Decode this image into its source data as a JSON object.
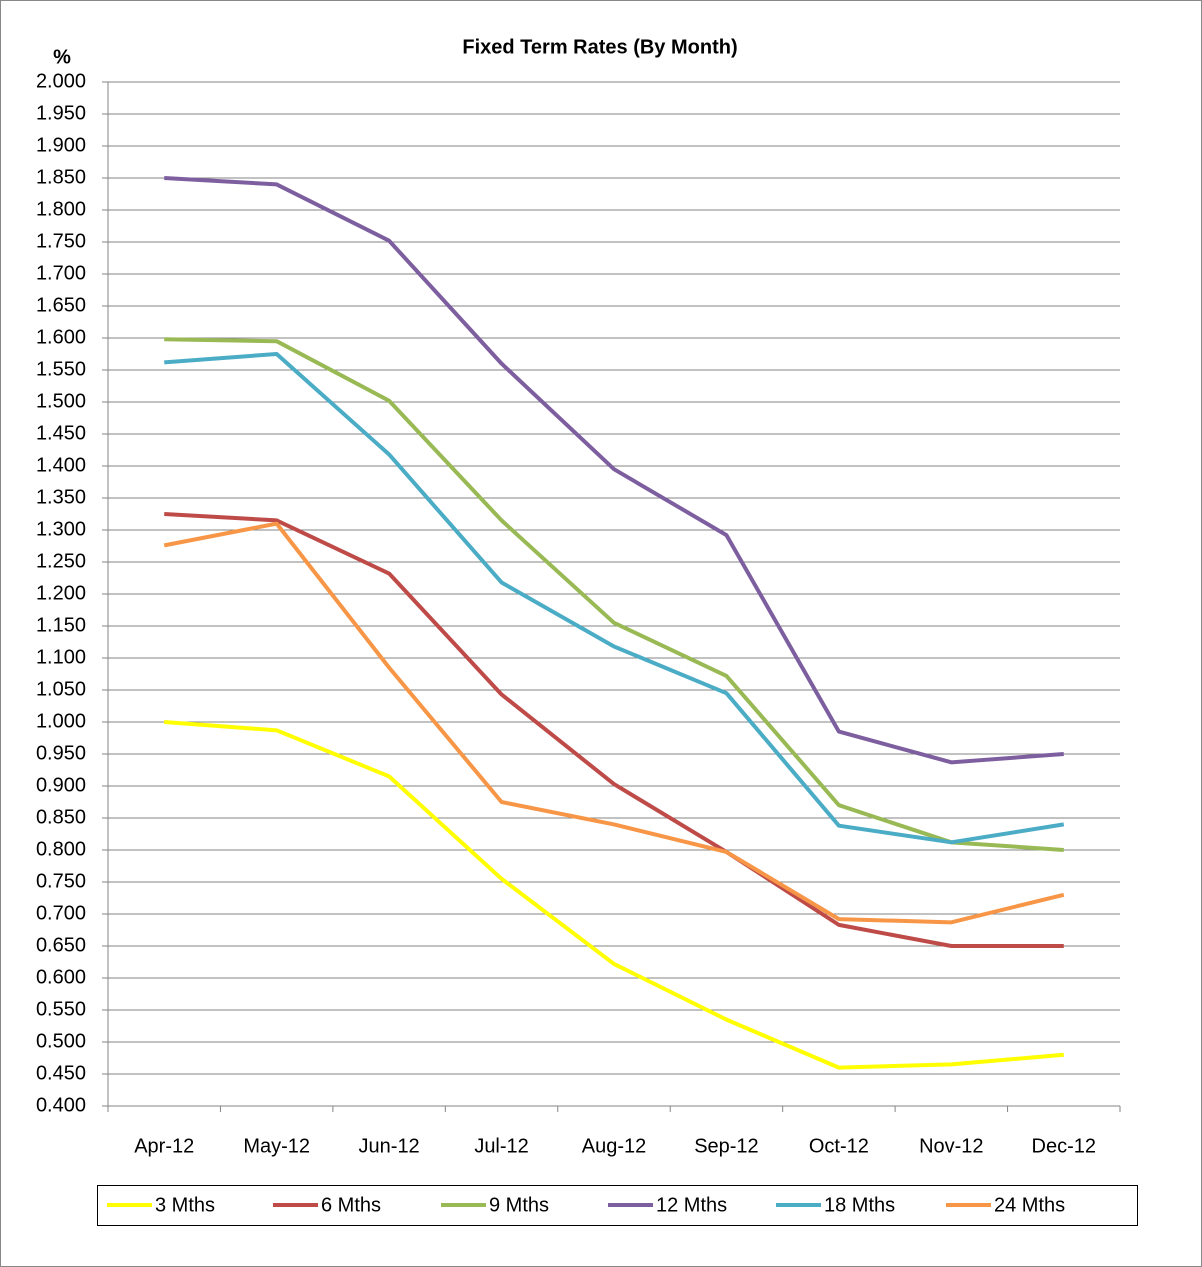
{
  "chart_data": {
    "type": "line",
    "title": "Fixed Term Rates (By Month)",
    "y_label": "%",
    "categories": [
      "Apr-12",
      "May-12",
      "Jun-12",
      "Jul-12",
      "Aug-12",
      "Sep-12",
      "Oct-12",
      "Nov-12",
      "Dec-12"
    ],
    "series": [
      {
        "name": "3 Mths",
        "color": "#ffff00",
        "values": [
          1.0,
          0.987,
          0.915,
          0.755,
          0.622,
          0.535,
          0.46,
          0.465,
          0.48
        ]
      },
      {
        "name": "6 Mths",
        "color": "#be4b48",
        "values": [
          1.325,
          1.315,
          1.232,
          1.043,
          0.903,
          0.797,
          0.683,
          0.65,
          0.65
        ]
      },
      {
        "name": "9 Mths",
        "color": "#98b954",
        "values": [
          1.598,
          1.595,
          1.502,
          1.315,
          1.155,
          1.072,
          0.87,
          0.812,
          0.8
        ]
      },
      {
        "name": "12 Mths",
        "color": "#7d5fa0",
        "values": [
          1.85,
          1.84,
          1.752,
          1.56,
          1.395,
          1.292,
          0.985,
          0.937,
          0.95
        ]
      },
      {
        "name": "18 Mths",
        "color": "#4bacc6",
        "values": [
          1.562,
          1.575,
          1.418,
          1.218,
          1.118,
          1.045,
          0.838,
          0.812,
          0.84
        ]
      },
      {
        "name": "24 Mths",
        "color": "#f79646",
        "values": [
          1.276,
          1.31,
          1.085,
          0.875,
          0.84,
          0.797,
          0.692,
          0.687,
          0.73
        ]
      }
    ],
    "ylim": [
      0.4,
      2.0
    ],
    "yticks": [
      {
        "value": 0.4,
        "label": "0.400"
      },
      {
        "value": 0.45,
        "label": "0.450"
      },
      {
        "value": 0.5,
        "label": "0.500"
      },
      {
        "value": 0.55,
        "label": "0.550"
      },
      {
        "value": 0.6,
        "label": "0.600"
      },
      {
        "value": 0.65,
        "label": "0.650"
      },
      {
        "value": 0.7,
        "label": "0.700"
      },
      {
        "value": 0.75,
        "label": "0.750"
      },
      {
        "value": 0.8,
        "label": "0.800"
      },
      {
        "value": 0.85,
        "label": "0.850"
      },
      {
        "value": 0.9,
        "label": "0.900"
      },
      {
        "value": 0.95,
        "label": "0.950"
      },
      {
        "value": 1.0,
        "label": "1.000"
      },
      {
        "value": 1.05,
        "label": "1.050"
      },
      {
        "value": 1.1,
        "label": "1.100"
      },
      {
        "value": 1.15,
        "label": "1.150"
      },
      {
        "value": 1.2,
        "label": "1.200"
      },
      {
        "value": 1.25,
        "label": "1.250"
      },
      {
        "value": 1.3,
        "label": "1.300"
      },
      {
        "value": 1.35,
        "label": "1.350"
      },
      {
        "value": 1.4,
        "label": "1.400"
      },
      {
        "value": 1.45,
        "label": "1.450"
      },
      {
        "value": 1.5,
        "label": "1.500"
      },
      {
        "value": 1.55,
        "label": "1.550"
      },
      {
        "value": 1.6,
        "label": "1.600"
      },
      {
        "value": 1.65,
        "label": "1.650"
      },
      {
        "value": 1.7,
        "label": "1.700"
      },
      {
        "value": 1.75,
        "label": "1.750"
      },
      {
        "value": 1.8,
        "label": "1.800"
      },
      {
        "value": 1.85,
        "label": "1.850"
      },
      {
        "value": 1.9,
        "label": "1.900"
      },
      {
        "value": 1.95,
        "label": "1.950"
      },
      {
        "value": 2.0,
        "label": "2.000"
      }
    ],
    "grid": true,
    "legend": "bottom"
  }
}
